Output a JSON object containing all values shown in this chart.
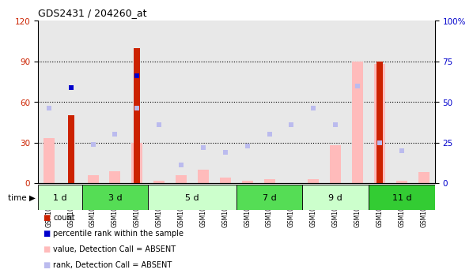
{
  "title": "GDS2431 / 204260_at",
  "samples": [
    "GSM102744",
    "GSM102746",
    "GSM102747",
    "GSM102748",
    "GSM102749",
    "GSM104060",
    "GSM102753",
    "GSM102755",
    "GSM104051",
    "GSM102756",
    "GSM102757",
    "GSM102758",
    "GSM102760",
    "GSM102761",
    "GSM104052",
    "GSM102763",
    "GSM103323",
    "GSM104053"
  ],
  "time_groups": [
    {
      "label": "1 d",
      "start": 0,
      "end": 2,
      "color": "#ccffcc"
    },
    {
      "label": "3 d",
      "start": 2,
      "end": 5,
      "color": "#55dd55"
    },
    {
      "label": "5 d",
      "start": 5,
      "end": 9,
      "color": "#ccffcc"
    },
    {
      "label": "7 d",
      "start": 9,
      "end": 12,
      "color": "#55dd55"
    },
    {
      "label": "9 d",
      "start": 12,
      "end": 15,
      "color": "#ccffcc"
    },
    {
      "label": "11 d",
      "start": 15,
      "end": 18,
      "color": "#33cc33"
    }
  ],
  "count_values": [
    null,
    50,
    null,
    null,
    100,
    null,
    null,
    null,
    null,
    null,
    null,
    null,
    null,
    null,
    null,
    90,
    null,
    null
  ],
  "percentile_rank_values": [
    null,
    59,
    null,
    null,
    66,
    null,
    null,
    null,
    null,
    null,
    null,
    null,
    null,
    null,
    null,
    null,
    null,
    null
  ],
  "value_absent": [
    33,
    null,
    6,
    9,
    30,
    2,
    6,
    10,
    4,
    2,
    3,
    null,
    3,
    28,
    90,
    88,
    2,
    8
  ],
  "rank_absent": [
    46,
    null,
    24,
    30,
    46,
    36,
    11,
    22,
    19,
    23,
    30,
    36,
    46,
    36,
    60,
    25,
    20,
    null
  ],
  "ylim_left": [
    0,
    120
  ],
  "ylim_right": [
    0,
    100
  ],
  "yticks_left": [
    0,
    30,
    60,
    90,
    120
  ],
  "yticks_right": [
    0,
    25,
    50,
    75,
    100
  ],
  "count_color": "#cc2200",
  "percentile_color": "#0000cc",
  "value_absent_color": "#ffbbbb",
  "rank_absent_color": "#bbbbee",
  "bg_color": "#e8e8e8",
  "plot_bg": "#ffffff",
  "title_color": "#000000",
  "left_tick_color": "#cc2200",
  "right_tick_color": "#0000cc"
}
